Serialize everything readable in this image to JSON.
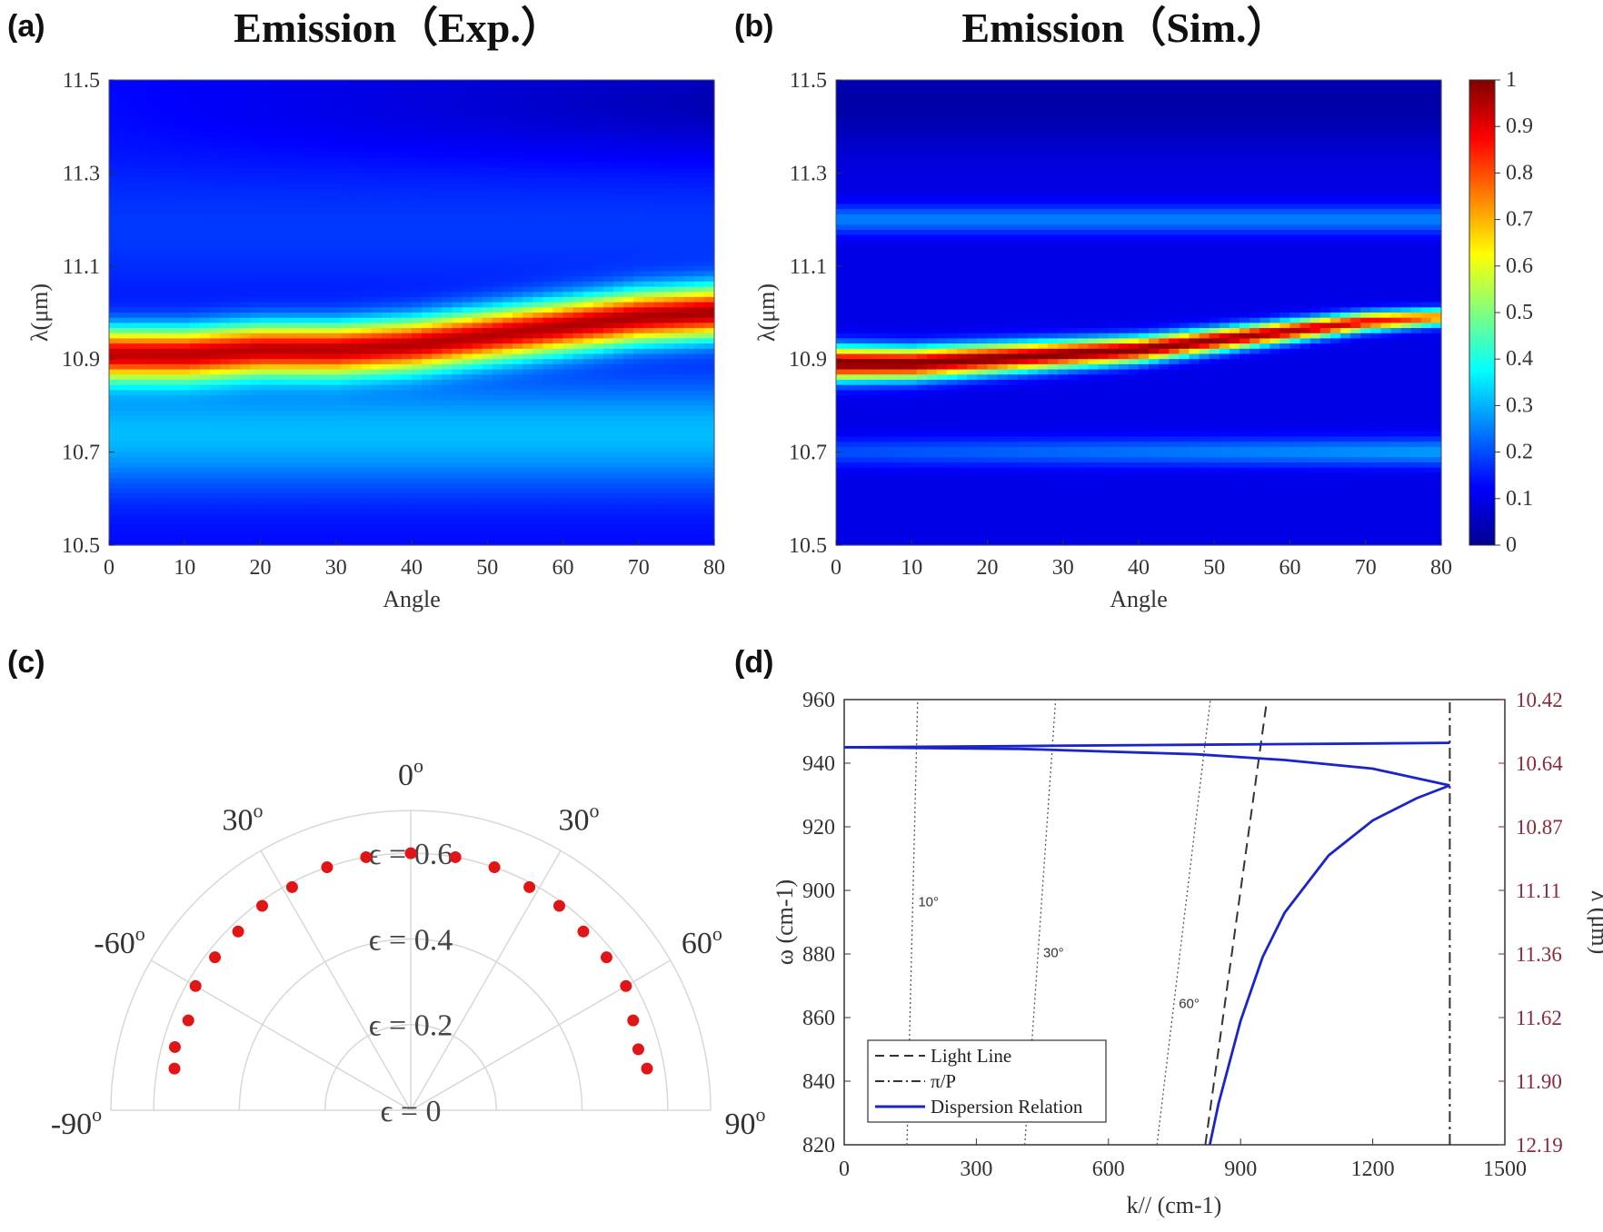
{
  "panels": {
    "a": {
      "label": "(a)",
      "title": "Emission（Exp.）"
    },
    "b": {
      "label": "(b)",
      "title": "Emission（Sim.）"
    },
    "c": {
      "label": "(c)"
    },
    "d": {
      "label": "(d)"
    }
  },
  "chart_data": [
    {
      "id": "a",
      "type": "heatmap",
      "title": "Emission（Exp.）",
      "xlabel": "Angle",
      "ylabel": "λ(μm)",
      "xlim": [
        0,
        80
      ],
      "ylim": [
        10.5,
        11.5
      ],
      "xticks": [
        "0",
        "10",
        "20",
        "30",
        "40",
        "50",
        "60",
        "70",
        "80"
      ],
      "yticks": [
        "10.5",
        "10.7",
        "10.9",
        "11.1",
        "11.3",
        "11.5"
      ],
      "peak_wavelength_by_angle": {
        "angle": [
          0,
          10,
          20,
          30,
          40,
          50,
          60,
          70,
          80
        ],
        "lambda_um": [
          10.91,
          10.91,
          10.92,
          10.92,
          10.93,
          10.95,
          10.97,
          10.99,
          11.0
        ]
      }
    },
    {
      "id": "b",
      "type": "heatmap",
      "title": "Emission（Sim.）",
      "xlabel": "Angle",
      "ylabel": "λ(μm)",
      "xlim": [
        0,
        80
      ],
      "ylim": [
        10.5,
        11.5
      ],
      "xticks": [
        "0",
        "10",
        "20",
        "30",
        "40",
        "50",
        "60",
        "70",
        "80"
      ],
      "yticks": [
        "10.5",
        "10.7",
        "10.9",
        "11.1",
        "11.3",
        "11.5"
      ],
      "colorbar": {
        "range": [
          0,
          1
        ],
        "ticks": [
          "0",
          "0.1",
          "0.2",
          "0.3",
          "0.4",
          "0.5",
          "0.6",
          "0.7",
          "0.8",
          "0.9",
          "1"
        ]
      },
      "peak_wavelength_by_angle": {
        "angle": [
          0,
          10,
          20,
          30,
          40,
          50,
          60,
          70,
          80
        ],
        "lambda_um": [
          10.89,
          10.89,
          10.9,
          10.91,
          10.92,
          10.94,
          10.96,
          10.98,
          10.99
        ]
      },
      "secondary_bands_um": [
        11.2,
        10.7
      ]
    },
    {
      "id": "c",
      "type": "scatter",
      "subtype": "polar",
      "angle_labels": [
        "0o",
        "30o",
        "30o",
        "-60o",
        "60o",
        "-90o",
        "90o"
      ],
      "radial_labels": [
        "ϵ = 0",
        "ϵ = 0.2",
        "ϵ = 0.4",
        "ϵ = 0.6"
      ],
      "rmax": 0.7,
      "angles_deg": [
        -80,
        -75,
        -68,
        -60,
        -52,
        -44,
        -36,
        -28,
        -19,
        -10,
        0,
        10,
        19,
        28,
        36,
        44,
        52,
        60,
        68,
        75,
        80
      ],
      "emissivity": [
        0.56,
        0.57,
        0.56,
        0.58,
        0.58,
        0.58,
        0.59,
        0.59,
        0.6,
        0.6,
        0.6,
        0.6,
        0.6,
        0.59,
        0.59,
        0.58,
        0.58,
        0.58,
        0.56,
        0.55,
        0.56
      ]
    },
    {
      "id": "d",
      "type": "line",
      "xlabel": "k// (cm-1)",
      "ylabel": "ω (cm-1)",
      "ylabel_right": "λ (μm)",
      "xlim": [
        0,
        1500
      ],
      "ylim": [
        820,
        960
      ],
      "xticks": [
        "0",
        "300",
        "600",
        "900",
        "1200",
        "1500"
      ],
      "yticks": [
        "820",
        "840",
        "860",
        "880",
        "900",
        "920",
        "940",
        "960"
      ],
      "right_ticks": [
        "12.19",
        "11.90",
        "11.62",
        "11.36",
        "11.11",
        "10.87",
        "10.64",
        "10.42"
      ],
      "annotations": [
        "10°",
        "30°",
        "60°"
      ],
      "angle_lines_deg": [
        10,
        30,
        60
      ],
      "legend": [
        "Light Line",
        "π/P",
        "Dispersion Relation"
      ],
      "series": [
        {
          "name": "Light Line",
          "style": "dashed",
          "x": [
            820,
            958
          ],
          "y": [
            820,
            958
          ]
        },
        {
          "name": "π/P",
          "style": "dashdot",
          "x": [
            1375,
            1375
          ],
          "y": [
            820,
            960
          ]
        },
        {
          "name": "Dispersion Relation upper",
          "x": [
            0,
            400,
            800,
            1200,
            1375
          ],
          "y": [
            945.0,
            945.4,
            945.8,
            946.2,
            946.4
          ]
        },
        {
          "name": "Dispersion Relation middle",
          "x": [
            0,
            400,
            800,
            1000,
            1200,
            1375
          ],
          "y": [
            945.0,
            944.5,
            942.8,
            941.0,
            938.3,
            933.0
          ]
        },
        {
          "name": "Dispersion Relation lower",
          "x": [
            830,
            850,
            900,
            950,
            1000,
            1100,
            1200,
            1300,
            1375
          ],
          "y": [
            820,
            833,
            859,
            879,
            893,
            911,
            922,
            929,
            933
          ]
        }
      ]
    }
  ]
}
